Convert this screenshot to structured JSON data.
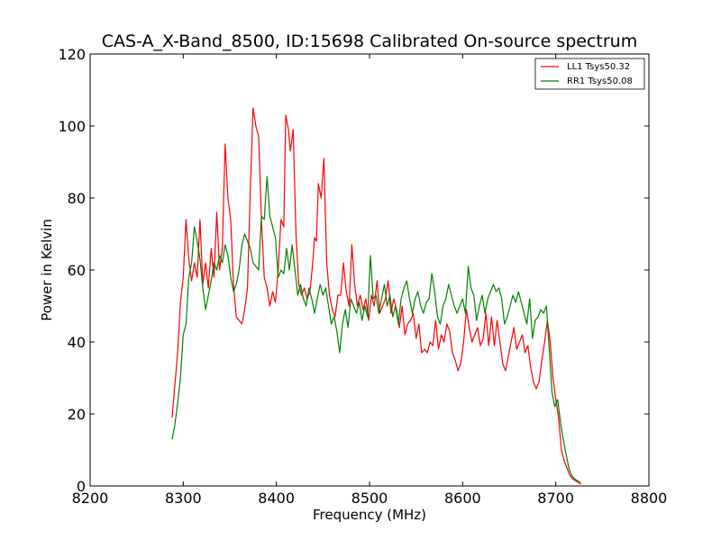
{
  "chart_data": {
    "type": "line",
    "title": "CAS-A_X-Band_8500, ID:15698 Calibrated On-source spectrum",
    "xlabel": "Frequency (MHz)",
    "ylabel": "Power in Kelvin",
    "xlim": [
      8200,
      8800
    ],
    "ylim": [
      0,
      120
    ],
    "xticks": [
      8200,
      8300,
      8400,
      8500,
      8600,
      8700,
      8800
    ],
    "yticks": [
      0,
      20,
      40,
      60,
      80,
      100,
      120
    ],
    "grid": false,
    "legend": "top-right",
    "series": [
      {
        "name": "LL1 Tsys50.32",
        "color": "#ff0000",
        "points": [
          [
            8288,
            19
          ],
          [
            8291,
            28
          ],
          [
            8294,
            37
          ],
          [
            8297,
            51
          ],
          [
            8300,
            58
          ],
          [
            8303,
            74
          ],
          [
            8306,
            63
          ],
          [
            8309,
            57
          ],
          [
            8312,
            62
          ],
          [
            8315,
            58
          ],
          [
            8318,
            74
          ],
          [
            8321,
            56
          ],
          [
            8324,
            62
          ],
          [
            8327,
            55
          ],
          [
            8330,
            66
          ],
          [
            8333,
            58
          ],
          [
            8336,
            76
          ],
          [
            8339,
            60
          ],
          [
            8342,
            66
          ],
          [
            8345,
            95
          ],
          [
            8348,
            80
          ],
          [
            8351,
            74
          ],
          [
            8354,
            56
          ],
          [
            8357,
            47
          ],
          [
            8360,
            46
          ],
          [
            8363,
            45
          ],
          [
            8366,
            49
          ],
          [
            8369,
            55
          ],
          [
            8372,
            82
          ],
          [
            8375,
            105
          ],
          [
            8378,
            100
          ],
          [
            8381,
            97
          ],
          [
            8384,
            74
          ],
          [
            8387,
            58
          ],
          [
            8390,
            55
          ],
          [
            8393,
            50
          ],
          [
            8396,
            54
          ],
          [
            8399,
            51
          ],
          [
            8402,
            60
          ],
          [
            8405,
            74
          ],
          [
            8408,
            72
          ],
          [
            8410,
            103
          ],
          [
            8413,
            99
          ],
          [
            8415,
            93
          ],
          [
            8418,
            99
          ],
          [
            8421,
            70
          ],
          [
            8424,
            56
          ],
          [
            8427,
            53
          ],
          [
            8430,
            55
          ],
          [
            8433,
            52
          ],
          [
            8436,
            54
          ],
          [
            8439,
            62
          ],
          [
            8441,
            69
          ],
          [
            8443,
            68
          ],
          [
            8445,
            84
          ],
          [
            8448,
            80
          ],
          [
            8451,
            91
          ],
          [
            8454,
            62
          ],
          [
            8457,
            53
          ],
          [
            8460,
            49
          ],
          [
            8463,
            47
          ],
          [
            8466,
            53
          ],
          [
            8469,
            53
          ],
          [
            8472,
            62
          ],
          [
            8475,
            54
          ],
          [
            8478,
            50
          ],
          [
            8481,
            67
          ],
          [
            8484,
            56
          ],
          [
            8487,
            50
          ],
          [
            8490,
            53
          ],
          [
            8493,
            49
          ],
          [
            8496,
            52
          ],
          [
            8499,
            46
          ],
          [
            8502,
            53
          ],
          [
            8505,
            50
          ],
          [
            8508,
            57
          ],
          [
            8511,
            48
          ],
          [
            8514,
            50
          ],
          [
            8517,
            52
          ],
          [
            8520,
            57
          ],
          [
            8523,
            48
          ],
          [
            8526,
            52
          ],
          [
            8529,
            49
          ],
          [
            8532,
            44
          ],
          [
            8535,
            50
          ],
          [
            8538,
            42
          ],
          [
            8541,
            45
          ],
          [
            8544,
            46
          ],
          [
            8547,
            48
          ],
          [
            8550,
            41
          ],
          [
            8553,
            45
          ],
          [
            8556,
            37
          ],
          [
            8559,
            38
          ],
          [
            8562,
            37
          ],
          [
            8565,
            40
          ],
          [
            8568,
            39
          ],
          [
            8571,
            46
          ],
          [
            8574,
            38
          ],
          [
            8577,
            42
          ],
          [
            8580,
            40
          ],
          [
            8583,
            45
          ],
          [
            8586,
            43
          ],
          [
            8589,
            37
          ],
          [
            8592,
            35
          ],
          [
            8595,
            32
          ],
          [
            8598,
            34
          ],
          [
            8601,
            40
          ],
          [
            8604,
            49
          ],
          [
            8607,
            44
          ],
          [
            8610,
            40
          ],
          [
            8613,
            42
          ],
          [
            8616,
            44
          ],
          [
            8619,
            39
          ],
          [
            8622,
            41
          ],
          [
            8625,
            48
          ],
          [
            8628,
            39
          ],
          [
            8631,
            47
          ],
          [
            8634,
            39
          ],
          [
            8637,
            46
          ],
          [
            8640,
            40
          ],
          [
            8643,
            34
          ],
          [
            8646,
            32
          ],
          [
            8649,
            36
          ],
          [
            8652,
            40
          ],
          [
            8655,
            44
          ],
          [
            8658,
            38
          ],
          [
            8661,
            40
          ],
          [
            8664,
            42
          ],
          [
            8667,
            37
          ],
          [
            8670,
            39
          ],
          [
            8673,
            33
          ],
          [
            8676,
            29
          ],
          [
            8679,
            27
          ],
          [
            8682,
            29
          ],
          [
            8685,
            35
          ],
          [
            8688,
            40
          ],
          [
            8691,
            46
          ],
          [
            8694,
            40
          ],
          [
            8697,
            30
          ],
          [
            8700,
            24
          ],
          [
            8703,
            19
          ],
          [
            8706,
            10
          ],
          [
            8709,
            7
          ],
          [
            8712,
            5
          ],
          [
            8715,
            3
          ],
          [
            8718,
            2
          ],
          [
            8721,
            1.5
          ],
          [
            8724,
            1
          ],
          [
            8727,
            0.5
          ]
        ]
      },
      {
        "name": "RR1 Tsys50.08",
        "color": "#008000",
        "points": [
          [
            8288,
            13
          ],
          [
            8291,
            17
          ],
          [
            8294,
            23
          ],
          [
            8297,
            30
          ],
          [
            8300,
            42
          ],
          [
            8303,
            45
          ],
          [
            8306,
            58
          ],
          [
            8309,
            62
          ],
          [
            8312,
            72
          ],
          [
            8315,
            68
          ],
          [
            8318,
            63
          ],
          [
            8321,
            55
          ],
          [
            8324,
            49
          ],
          [
            8327,
            53
          ],
          [
            8330,
            57
          ],
          [
            8333,
            62
          ],
          [
            8336,
            60
          ],
          [
            8339,
            64
          ],
          [
            8342,
            62
          ],
          [
            8345,
            67
          ],
          [
            8348,
            64
          ],
          [
            8351,
            58
          ],
          [
            8354,
            54
          ],
          [
            8357,
            56
          ],
          [
            8360,
            60
          ],
          [
            8363,
            67
          ],
          [
            8366,
            70
          ],
          [
            8369,
            68
          ],
          [
            8372,
            66
          ],
          [
            8375,
            62
          ],
          [
            8378,
            61
          ],
          [
            8381,
            60
          ],
          [
            8384,
            75
          ],
          [
            8387,
            74
          ],
          [
            8390,
            86
          ],
          [
            8393,
            75
          ],
          [
            8396,
            72
          ],
          [
            8399,
            69
          ],
          [
            8402,
            58
          ],
          [
            8405,
            60
          ],
          [
            8408,
            59
          ],
          [
            8411,
            66
          ],
          [
            8414,
            60
          ],
          [
            8417,
            67
          ],
          [
            8420,
            60
          ],
          [
            8423,
            53
          ],
          [
            8426,
            56
          ],
          [
            8429,
            52
          ],
          [
            8432,
            50
          ],
          [
            8435,
            55
          ],
          [
            8438,
            52
          ],
          [
            8441,
            48
          ],
          [
            8444,
            52
          ],
          [
            8447,
            56
          ],
          [
            8450,
            53
          ],
          [
            8453,
            55
          ],
          [
            8456,
            50
          ],
          [
            8459,
            45
          ],
          [
            8462,
            47
          ],
          [
            8465,
            43
          ],
          [
            8468,
            37
          ],
          [
            8471,
            45
          ],
          [
            8474,
            49
          ],
          [
            8477,
            44
          ],
          [
            8480,
            52
          ],
          [
            8483,
            50
          ],
          [
            8486,
            48
          ],
          [
            8489,
            51
          ],
          [
            8492,
            46
          ],
          [
            8495,
            50
          ],
          [
            8498,
            47
          ],
          [
            8501,
            64
          ],
          [
            8504,
            52
          ],
          [
            8507,
            53
          ],
          [
            8510,
            48
          ],
          [
            8513,
            52
          ],
          [
            8516,
            56
          ],
          [
            8519,
            50
          ],
          [
            8522,
            53
          ],
          [
            8525,
            47
          ],
          [
            8528,
            50
          ],
          [
            8531,
            45
          ],
          [
            8534,
            52
          ],
          [
            8537,
            55
          ],
          [
            8540,
            57
          ],
          [
            8543,
            52
          ],
          [
            8546,
            48
          ],
          [
            8549,
            52
          ],
          [
            8552,
            54
          ],
          [
            8555,
            50
          ],
          [
            8558,
            48
          ],
          [
            8561,
            51
          ],
          [
            8564,
            52
          ],
          [
            8567,
            59
          ],
          [
            8570,
            54
          ],
          [
            8573,
            47
          ],
          [
            8576,
            45
          ],
          [
            8579,
            50
          ],
          [
            8582,
            52
          ],
          [
            8585,
            56
          ],
          [
            8588,
            53
          ],
          [
            8591,
            50
          ],
          [
            8594,
            48
          ],
          [
            8597,
            50
          ],
          [
            8600,
            52
          ],
          [
            8603,
            48
          ],
          [
            8606,
            61
          ],
          [
            8609,
            55
          ],
          [
            8612,
            53
          ],
          [
            8615,
            46
          ],
          [
            8618,
            50
          ],
          [
            8621,
            53
          ],
          [
            8624,
            48
          ],
          [
            8627,
            52
          ],
          [
            8630,
            54
          ],
          [
            8633,
            56
          ],
          [
            8636,
            54
          ],
          [
            8639,
            55
          ],
          [
            8642,
            52
          ],
          [
            8645,
            45
          ],
          [
            8648,
            47
          ],
          [
            8651,
            50
          ],
          [
            8654,
            53
          ],
          [
            8657,
            51
          ],
          [
            8660,
            54
          ],
          [
            8663,
            51
          ],
          [
            8666,
            48
          ],
          [
            8669,
            45
          ],
          [
            8672,
            52
          ],
          [
            8675,
            41
          ],
          [
            8678,
            46
          ],
          [
            8681,
            47
          ],
          [
            8684,
            49
          ],
          [
            8687,
            48
          ],
          [
            8690,
            50
          ],
          [
            8693,
            38
          ],
          [
            8696,
            26
          ],
          [
            8699,
            22
          ],
          [
            8702,
            24
          ],
          [
            8705,
            18
          ],
          [
            8708,
            13
          ],
          [
            8711,
            9
          ],
          [
            8714,
            5
          ],
          [
            8717,
            3
          ],
          [
            8720,
            2
          ],
          [
            8723,
            1.5
          ],
          [
            8727,
            1
          ]
        ]
      }
    ]
  }
}
